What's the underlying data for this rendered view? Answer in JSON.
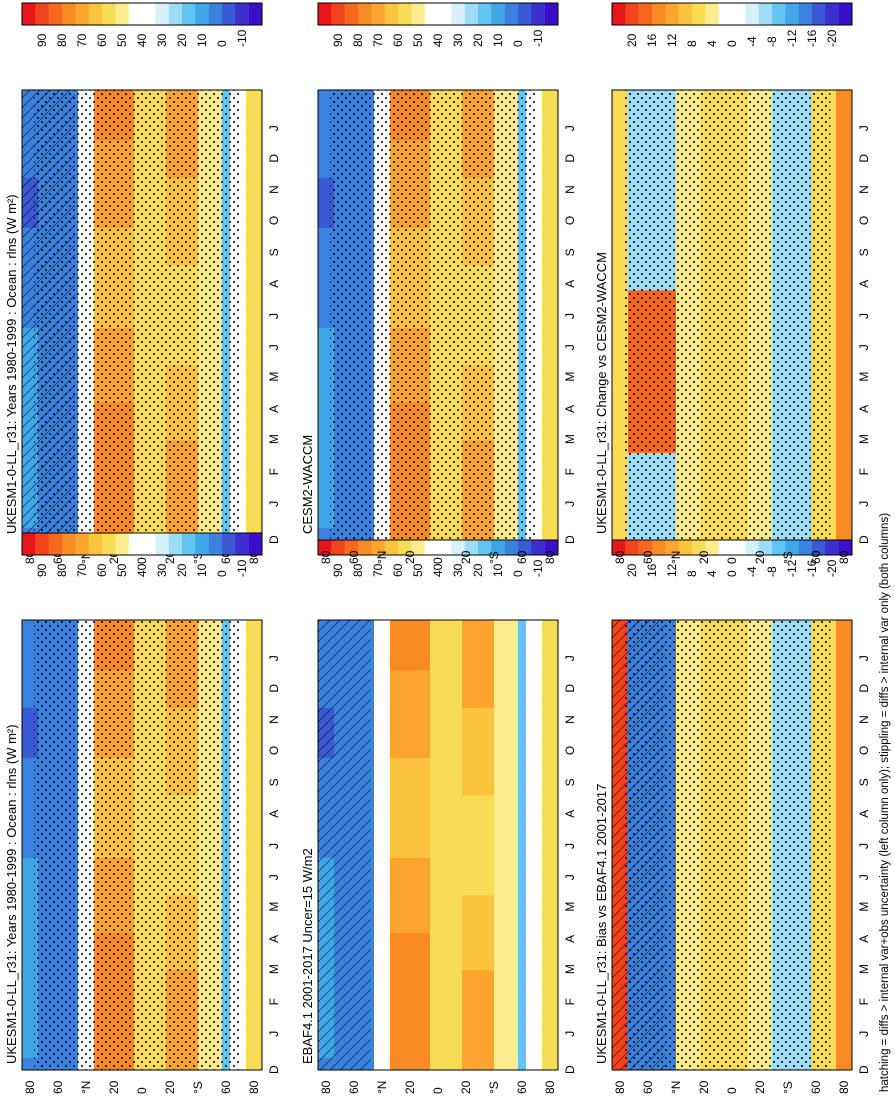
{
  "footer_note": "hatching = diffs > internal var+obs uncertainty (left column only); stippling = diffs > internal var only (both columns)",
  "colorbar_sets": {
    "abs": {
      "ticks": [
        "90",
        "80",
        "70",
        "60",
        "50",
        "40",
        "30",
        "20",
        "10",
        "0",
        "-10"
      ],
      "colors": [
        "#e8151a",
        "#f0451c",
        "#f7681e",
        "#f98b24",
        "#fba52f",
        "#fcc43c",
        "#f9dc55",
        "#fbed8e",
        "#ffffff",
        "#ffffff",
        "#d7f0fb",
        "#9fdcf5",
        "#62c4f0",
        "#3fa7e8",
        "#3b82de",
        "#3a59d4",
        "#3b2fd0",
        "#3a10cc"
      ]
    },
    "diff": {
      "ticks": [
        "20",
        "16",
        "12",
        "8",
        "4",
        "0",
        "-4",
        "-8",
        "-12",
        "-16",
        "-20"
      ],
      "colors": [
        "#e8151a",
        "#f0451c",
        "#f7681e",
        "#f98b24",
        "#fba52f",
        "#fcc43c",
        "#f9dc55",
        "#fbed8e",
        "#ffffff",
        "#ffffff",
        "#d7f0fb",
        "#9fdcf5",
        "#62c4f0",
        "#3fa7e8",
        "#3b82de",
        "#3a59d4",
        "#3b2fd0",
        "#3a10cc"
      ]
    }
  },
  "chart_data": [
    {
      "type": "heatmap",
      "title": "UKESM1-0-LL_r31: Years 1980-1999 : Ocean : rlns (W m²)",
      "x": [
        "J",
        "F",
        "M",
        "A",
        "M",
        "J",
        "J",
        "A",
        "S",
        "O",
        "N",
        "D",
        "J"
      ],
      "x_edge_labels": [
        "D",
        "J"
      ],
      "y_ticks": [
        "80",
        "60",
        "°N",
        "20",
        "0",
        "20",
        "°S",
        "60",
        "80"
      ],
      "colorbar": "abs",
      "hatching": true,
      "stippling": true
    },
    {
      "type": "heatmap",
      "title": "UKESM1-0-LL_r31: Years 1980-1999 : Ocean : rlns (W m²)",
      "x": [
        "J",
        "F",
        "M",
        "A",
        "M",
        "J",
        "J",
        "A",
        "S",
        "O",
        "N",
        "D",
        "J"
      ],
      "x_edge_labels": [
        "D",
        "J"
      ],
      "y_ticks": [
        "80",
        "60",
        "°N",
        "20",
        "0",
        "20",
        "°S",
        "60",
        "80"
      ],
      "colorbar": "abs",
      "hatching": false,
      "stippling": true
    },
    {
      "type": "heatmap",
      "title": "EBAF4.1 2001-2017 Uncer=15 W/m2",
      "x": [
        "J",
        "F",
        "M",
        "A",
        "M",
        "J",
        "J",
        "A",
        "S",
        "O",
        "N",
        "D",
        "J"
      ],
      "x_edge_labels": [
        "D",
        "J"
      ],
      "y_ticks": [
        "80",
        "60",
        "°N",
        "20",
        "0",
        "20",
        "°S",
        "60",
        "80"
      ],
      "colorbar": "abs",
      "hatching": true,
      "stippling": false
    },
    {
      "type": "heatmap",
      "title": "CESM2-WACCM",
      "x": [
        "J",
        "F",
        "M",
        "A",
        "M",
        "J",
        "J",
        "A",
        "S",
        "O",
        "N",
        "D",
        "J"
      ],
      "x_edge_labels": [
        "D",
        "J"
      ],
      "y_ticks": [
        "80",
        "60",
        "°N",
        "20",
        "0",
        "20",
        "°S",
        "60",
        "80"
      ],
      "colorbar": "abs",
      "hatching": false,
      "stippling": true
    },
    {
      "type": "heatmap",
      "title": "UKESM1-0-LL_r31: Bias vs EBAF4.1 2001-2017",
      "x": [
        "J",
        "F",
        "M",
        "A",
        "M",
        "J",
        "J",
        "A",
        "S",
        "O",
        "N",
        "D",
        "J"
      ],
      "x_edge_labels": [
        "D",
        "J"
      ],
      "y_ticks": [
        "80",
        "60",
        "°N",
        "20",
        "0",
        "20",
        "°S",
        "60",
        "80"
      ],
      "colorbar": "diff",
      "hatching": true,
      "stippling": true
    },
    {
      "type": "heatmap",
      "title": "UKESM1-0-LL_r31: Change vs CESM2-WACCM",
      "x": [
        "J",
        "F",
        "M",
        "A",
        "M",
        "J",
        "J",
        "A",
        "S",
        "O",
        "N",
        "D",
        "J"
      ],
      "x_edge_labels": [
        "D",
        "J"
      ],
      "y_ticks": [
        "80",
        "60",
        "°N",
        "20",
        "0",
        "20",
        "°S",
        "60",
        "80"
      ],
      "colorbar": "diff",
      "hatching": false,
      "stippling": true
    }
  ]
}
